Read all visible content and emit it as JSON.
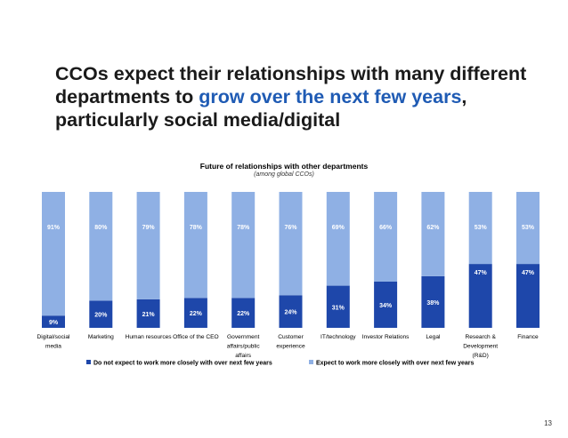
{
  "slide": {
    "title_part1": "CCOs expect their relationships with many different departments to ",
    "title_highlight": "grow over the next few years",
    "title_part2": ", particularly social media/digital",
    "page_number": "13"
  },
  "colors": {
    "dark_series": "#1e47aa",
    "light_series": "#8fb0e4",
    "title_highlight": "#1f5bb4"
  },
  "chart_data": {
    "type": "bar",
    "stacked": true,
    "title": "Future of relationships with other departments",
    "subtitle": "(among global CCOs)",
    "ylim": [
      0,
      100
    ],
    "categories": [
      [
        "Digital/social",
        "media"
      ],
      [
        "Marketing"
      ],
      [
        "Human resources"
      ],
      [
        "Office of the CEO"
      ],
      [
        "Government",
        "affairs/public",
        "affairs"
      ],
      [
        "Customer",
        "experience"
      ],
      [
        "IT/technology"
      ],
      [
        "Investor Relations"
      ],
      [
        "Legal"
      ],
      [
        "Research &",
        "Development",
        "(R&D)"
      ],
      [
        "Finance"
      ]
    ],
    "series": [
      {
        "name": "Do not expect to work more closely with over next few years",
        "values": [
          9,
          20,
          21,
          22,
          22,
          24,
          31,
          34,
          38,
          47,
          47
        ],
        "labels": [
          "9%",
          "20%",
          "21%",
          "22%",
          "22%",
          "24%",
          "31%",
          "34%",
          "38%",
          "47%",
          "47%"
        ]
      },
      {
        "name": "Expect to work more closely with over next few years",
        "values": [
          91,
          80,
          79,
          78,
          78,
          76,
          69,
          66,
          62,
          53,
          53
        ],
        "labels": [
          "91%",
          "80%",
          "79%",
          "78%",
          "78%",
          "76%",
          "69%",
          "66%",
          "62%",
          "53%",
          "53%"
        ]
      }
    ],
    "legend_position": "bottom"
  }
}
